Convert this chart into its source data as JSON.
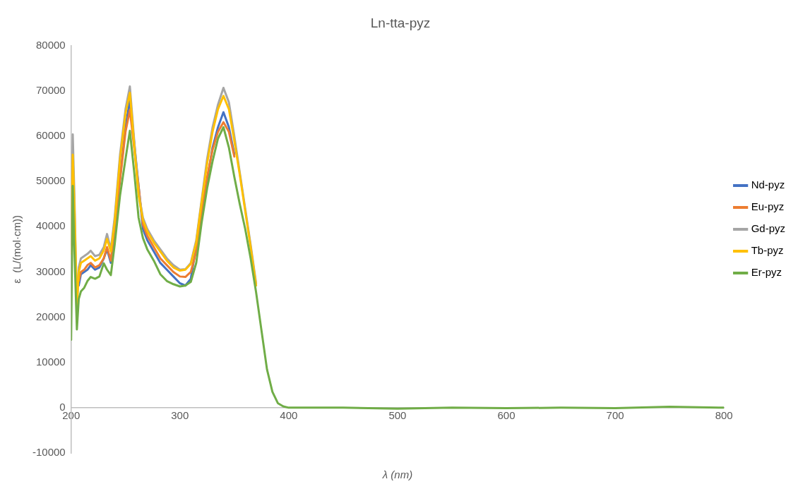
{
  "chart_data": {
    "type": "line",
    "title": "Ln-tta-pyz",
    "xlabel": "λ (nm)",
    "ylabel": "ε  (L/(mol·cm))",
    "x": [
      200,
      201.5,
      203,
      205.3,
      207,
      209,
      212,
      215,
      218,
      222,
      226,
      230,
      233,
      236.5,
      240,
      245,
      250,
      254,
      258,
      262,
      266,
      270,
      276,
      282,
      288,
      294,
      300,
      305,
      310,
      315,
      320,
      325,
      330,
      335,
      340,
      345,
      350,
      355,
      360,
      365,
      370,
      375,
      380,
      385,
      390,
      395,
      400,
      450,
      500,
      550,
      600,
      650,
      700,
      750,
      800
    ],
    "series": [
      {
        "name": "Nd-pyz",
        "color": "#4472c4",
        "values": [
          null,
          null,
          null,
          null,
          27000,
          29500,
          30000,
          30500,
          31500,
          30500,
          31000,
          33000,
          35000,
          32000,
          null,
          null,
          62000,
          68000,
          null,
          null,
          39500,
          37000,
          34500,
          32000,
          30500,
          29000,
          27500,
          27000,
          28500,
          null,
          null,
          null,
          57500,
          62000,
          65300,
          62000,
          56000,
          null,
          null,
          null,
          null,
          null,
          null,
          null,
          null,
          null,
          null,
          null,
          null,
          null,
          null,
          null,
          null,
          null,
          null
        ]
      },
      {
        "name": "Eu-pyz",
        "color": "#ed7d31",
        "values": [
          null,
          null,
          null,
          null,
          28000,
          30000,
          30500,
          31500,
          32000,
          31000,
          31500,
          33000,
          35500,
          32500,
          null,
          null,
          61000,
          65800,
          null,
          null,
          40500,
          38000,
          35500,
          33000,
          31500,
          30000,
          29000,
          28900,
          30000,
          34500,
          43000,
          51000,
          57000,
          61000,
          63100,
          61000,
          55500,
          null,
          null,
          null,
          null,
          null,
          null,
          null,
          null,
          null,
          null,
          null,
          null,
          null,
          null,
          null,
          null,
          null,
          null
        ]
      },
      {
        "name": "Gd-pyz",
        "color": "#a5a5a5",
        "values": [
          36000,
          60400,
          47000,
          22000,
          31000,
          33000,
          33500,
          34000,
          34700,
          33500,
          33800,
          35500,
          38400,
          35000,
          42000,
          56000,
          66000,
          71000,
          59000,
          47500,
          42000,
          39500,
          37000,
          35000,
          33000,
          31500,
          30500,
          30600,
          32000,
          37000,
          46000,
          55000,
          62000,
          67000,
          70700,
          67500,
          60000,
          52000,
          44000,
          36000,
          27500,
          null,
          null,
          null,
          null,
          null,
          null,
          null,
          null,
          null,
          null,
          null,
          null,
          null,
          null
        ]
      },
      {
        "name": "Tb-pyz",
        "color": "#ffc000",
        "values": [
          34000,
          55900,
          45000,
          22000,
          30000,
          32000,
          32500,
          33000,
          33500,
          32500,
          33000,
          34800,
          37300,
          34500,
          41000,
          55000,
          65000,
          69600,
          58000,
          47000,
          41500,
          39000,
          36500,
          34500,
          32500,
          31000,
          30300,
          30500,
          31800,
          36500,
          45500,
          54000,
          61000,
          66000,
          68900,
          66000,
          59000,
          51500,
          43500,
          35500,
          27000,
          null,
          null,
          null,
          null,
          null,
          null,
          null,
          null,
          null,
          null,
          null,
          null,
          null,
          null
        ]
      },
      {
        "name": "Er-pyz",
        "color": "#70ad47",
        "values": [
          15000,
          49000,
          35000,
          17300,
          24000,
          25700,
          26500,
          28000,
          28900,
          28500,
          29000,
          31900,
          30500,
          29300,
          36000,
          47000,
          55000,
          61200,
          52000,
          42000,
          37500,
          35000,
          32500,
          29500,
          28000,
          27300,
          26800,
          27000,
          27800,
          32000,
          41000,
          48500,
          54500,
          59500,
          62000,
          57500,
          51000,
          45000,
          39500,
          33000,
          25500,
          17000,
          8500,
          3500,
          1000,
          300,
          0,
          0,
          -200,
          0,
          -100,
          0,
          -100,
          200,
          0
        ]
      }
    ],
    "xlim": [
      200,
      800
    ],
    "xticks": [
      200,
      300,
      400,
      500,
      600,
      700,
      800
    ],
    "ylim": [
      -10000,
      80000
    ],
    "yticks": [
      -10000,
      0,
      10000,
      20000,
      30000,
      40000,
      50000,
      60000,
      70000,
      80000
    ],
    "grid": false,
    "legend": "right",
    "marker": "none",
    "line_style": "solid"
  }
}
